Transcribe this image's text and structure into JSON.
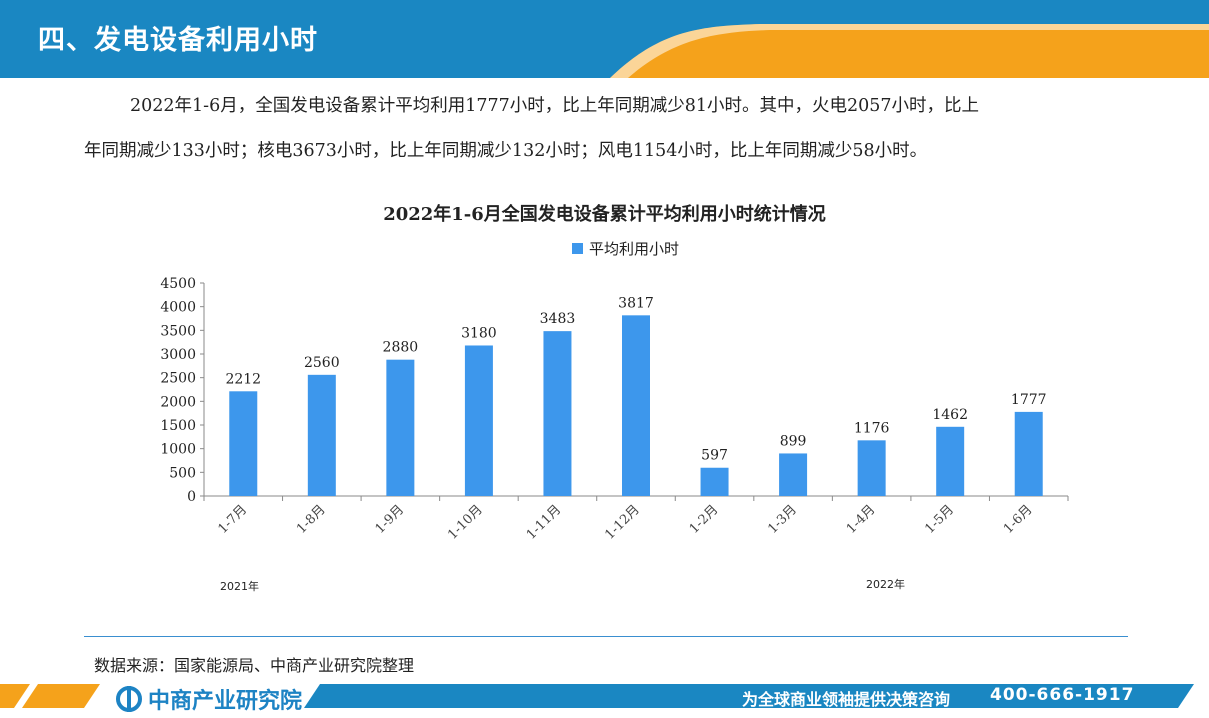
{
  "header": {
    "title": "四、发电设备利用小时",
    "colors": {
      "blue": "#1a87c2",
      "orange": "#f5a21b"
    }
  },
  "paragraph": {
    "line1": "2022年1-6月，全国发电设备累计平均利用1777小时，比上年同期减少81小时。其中，火电2057小时，比上",
    "line2": "年同期减少133小时；核电3673小时，比上年同期减少132小时；风电1154小时，比上年同期减少58小时。"
  },
  "chart_data": {
    "type": "bar",
    "title": "2022年1-6月全国发电设备累计平均利用小时统计情况",
    "categories": [
      "1-7月",
      "1-8月",
      "1-9月",
      "1-10月",
      "1-11月",
      "1-12月",
      "1-2月",
      "1-3月",
      "1-4月",
      "1-5月",
      "1-6月"
    ],
    "series": [
      {
        "name": "平均利用小时",
        "values": [
          2212,
          2560,
          2880,
          3180,
          3483,
          3817,
          597,
          899,
          1176,
          1462,
          1777
        ]
      }
    ],
    "ylim": [
      0,
      4500
    ],
    "yticks": [
      0,
      500,
      1000,
      1500,
      2000,
      2500,
      3000,
      3500,
      4000,
      4500
    ],
    "year_labels": [
      "2021年",
      "2022年"
    ],
    "bar_color": "#3d97ec",
    "grid": false,
    "legend_position": "top"
  },
  "footer": {
    "source": "数据来源：国家能源局、中商产业研究院整理",
    "brand": "中商产业研究院",
    "slogan": "为全球商业领袖提供决策咨询",
    "phone": "400-666-1917"
  }
}
